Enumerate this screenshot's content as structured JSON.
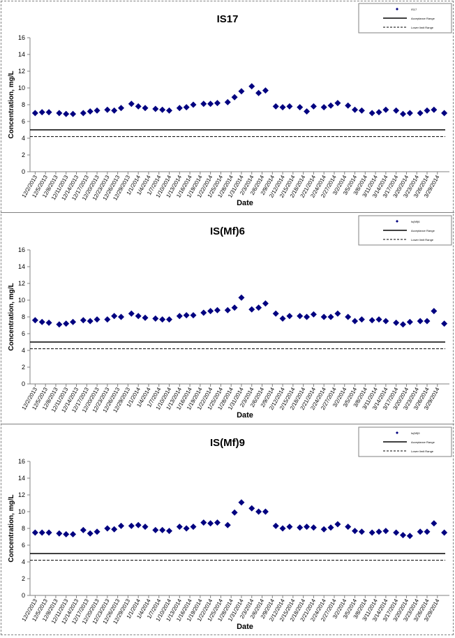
{
  "chart_data": [
    {
      "type": "scatter",
      "title": "IS17",
      "xlabel": "Date",
      "ylabel": "Concentration, mg/L",
      "ylim": [
        0,
        16
      ],
      "yticks": [
        0,
        2,
        4,
        6,
        8,
        10,
        12,
        14,
        16
      ],
      "grid": false,
      "legend_position": "top-right",
      "legend": [
        "IS17",
        "Acceptance Range",
        "Lower limit Range"
      ],
      "xtick_labels": [
        "12/2/2013",
        "12/5/2013",
        "12/8/2013",
        "12/11/2013",
        "12/14/2013",
        "12/17/2013",
        "12/20/2013",
        "12/23/2013",
        "12/26/2013",
        "12/29/2013",
        "1/1/2014",
        "1/4/2014",
        "1/7/2014",
        "1/10/2014",
        "1/13/2014",
        "1/16/2014",
        "1/19/2014",
        "1/22/2014",
        "1/25/2014",
        "1/28/2014",
        "1/31/2014",
        "2/3/2014",
        "2/6/2014",
        "2/9/2014",
        "2/12/2014",
        "2/15/2014",
        "2/18/2014",
        "2/21/2014",
        "2/24/2014",
        "2/27/2014",
        "3/2/2014",
        "3/5/2014",
        "3/8/2014",
        "3/11/2014",
        "3/14/2014",
        "3/17/2014",
        "3/20/2014",
        "3/23/2014",
        "3/26/2014",
        "3/29/2014"
      ],
      "series": [
        {
          "name": "IS17",
          "color": "#000080",
          "points": [
            {
              "x": "12/2/2013",
              "y": 7.0
            },
            {
              "x": "12/4/2013",
              "y": 7.1
            },
            {
              "x": "12/6/2013",
              "y": 7.1
            },
            {
              "x": "12/9/2013",
              "y": 7.0
            },
            {
              "x": "12/11/2013",
              "y": 6.9
            },
            {
              "x": "12/13/2013",
              "y": 6.9
            },
            {
              "x": "12/16/2013",
              "y": 7.0
            },
            {
              "x": "12/18/2013",
              "y": 7.2
            },
            {
              "x": "12/20/2013",
              "y": 7.3
            },
            {
              "x": "12/23/2013",
              "y": 7.4
            },
            {
              "x": "12/25/2013",
              "y": 7.3
            },
            {
              "x": "12/27/2013",
              "y": 7.6
            },
            {
              "x": "12/30/2013",
              "y": 8.1
            },
            {
              "x": "1/1/2014",
              "y": 7.8
            },
            {
              "x": "1/3/2014",
              "y": 7.6
            },
            {
              "x": "1/6/2014",
              "y": 7.5
            },
            {
              "x": "1/8/2014",
              "y": 7.4
            },
            {
              "x": "1/10/2014",
              "y": 7.3
            },
            {
              "x": "1/13/2014",
              "y": 7.6
            },
            {
              "x": "1/15/2014",
              "y": 7.7
            },
            {
              "x": "1/17/2014",
              "y": 8.0
            },
            {
              "x": "1/20/2014",
              "y": 8.1
            },
            {
              "x": "1/22/2014",
              "y": 8.1
            },
            {
              "x": "1/24/2014",
              "y": 8.2
            },
            {
              "x": "1/27/2014",
              "y": 8.3
            },
            {
              "x": "1/29/2014",
              "y": 8.9
            },
            {
              "x": "1/31/2014",
              "y": 9.6
            },
            {
              "x": "2/3/2014",
              "y": 10.2
            },
            {
              "x": "2/5/2014",
              "y": 9.4
            },
            {
              "x": "2/7/2014",
              "y": 9.7
            },
            {
              "x": "2/10/2014",
              "y": 7.8
            },
            {
              "x": "2/12/2014",
              "y": 7.7
            },
            {
              "x": "2/14/2014",
              "y": 7.8
            },
            {
              "x": "2/17/2014",
              "y": 7.7
            },
            {
              "x": "2/19/2014",
              "y": 7.2
            },
            {
              "x": "2/21/2014",
              "y": 7.8
            },
            {
              "x": "2/24/2014",
              "y": 7.7
            },
            {
              "x": "2/26/2014",
              "y": 7.9
            },
            {
              "x": "2/28/2014",
              "y": 8.2
            },
            {
              "x": "3/3/2014",
              "y": 7.9
            },
            {
              "x": "3/5/2014",
              "y": 7.4
            },
            {
              "x": "3/7/2014",
              "y": 7.3
            },
            {
              "x": "3/10/2014",
              "y": 7.0
            },
            {
              "x": "3/12/2014",
              "y": 7.1
            },
            {
              "x": "3/14/2014",
              "y": 7.4
            },
            {
              "x": "3/17/2014",
              "y": 7.3
            },
            {
              "x": "3/19/2014",
              "y": 6.9
            },
            {
              "x": "3/21/2014",
              "y": 7.0
            },
            {
              "x": "3/24/2014",
              "y": 7.0
            },
            {
              "x": "3/26/2014",
              "y": 7.3
            },
            {
              "x": "3/28/2014",
              "y": 7.4
            },
            {
              "x": "3/31/2014",
              "y": 7.0
            }
          ]
        }
      ],
      "reference_lines": [
        {
          "name": "Acceptance Range",
          "y": 5.0,
          "style": "solid"
        },
        {
          "name": "Lower limit Range",
          "y": 4.2,
          "style": "dashed"
        }
      ]
    },
    {
      "type": "scatter",
      "title": "IS(Mf)6",
      "xlabel": "Date",
      "ylabel": "Concentration, mg/L",
      "ylim": [
        0,
        16
      ],
      "yticks": [
        0,
        2,
        4,
        6,
        8,
        10,
        12,
        14,
        16
      ],
      "grid": false,
      "legend_position": "top-right",
      "legend": [
        "Is(Mf)6",
        "Acceptance Range",
        "Lower limit Range"
      ],
      "xtick_labels": [
        "12/2/2013",
        "12/5/2013",
        "12/8/2013",
        "12/11/2013",
        "12/14/2013",
        "12/17/2013",
        "12/20/2013",
        "12/23/2013",
        "12/26/2013",
        "12/29/2013",
        "1/1/2014",
        "1/4/2014",
        "1/7/2014",
        "1/10/2014",
        "1/13/2014",
        "1/16/2014",
        "1/19/2014",
        "1/22/2014",
        "1/25/2014",
        "1/28/2014",
        "1/31/2014",
        "2/3/2014",
        "2/6/2014",
        "2/9/2014",
        "2/12/2014",
        "2/15/2014",
        "2/18/2014",
        "2/21/2014",
        "2/24/2014",
        "2/27/2014",
        "3/2/2014",
        "3/5/2014",
        "3/8/2014",
        "3/11/2014",
        "3/14/2014",
        "3/17/2014",
        "3/20/2014",
        "3/23/2014",
        "3/26/2014",
        "3/29/2014"
      ],
      "series": [
        {
          "name": "Is(Mf)6",
          "color": "#000080",
          "points": [
            {
              "x": "12/2/2013",
              "y": 7.6
            },
            {
              "x": "12/4/2013",
              "y": 7.4
            },
            {
              "x": "12/6/2013",
              "y": 7.3
            },
            {
              "x": "12/9/2013",
              "y": 7.1
            },
            {
              "x": "12/11/2013",
              "y": 7.2
            },
            {
              "x": "12/13/2013",
              "y": 7.4
            },
            {
              "x": "12/16/2013",
              "y": 7.6
            },
            {
              "x": "12/18/2013",
              "y": 7.5
            },
            {
              "x": "12/20/2013",
              "y": 7.7
            },
            {
              "x": "12/23/2013",
              "y": 7.7
            },
            {
              "x": "12/25/2013",
              "y": 8.1
            },
            {
              "x": "12/27/2013",
              "y": 8.0
            },
            {
              "x": "12/30/2013",
              "y": 8.4
            },
            {
              "x": "1/1/2014",
              "y": 8.1
            },
            {
              "x": "1/3/2014",
              "y": 7.9
            },
            {
              "x": "1/6/2014",
              "y": 7.8
            },
            {
              "x": "1/8/2014",
              "y": 7.7
            },
            {
              "x": "1/10/2014",
              "y": 7.7
            },
            {
              "x": "1/13/2014",
              "y": 8.1
            },
            {
              "x": "1/15/2014",
              "y": 8.2
            },
            {
              "x": "1/17/2014",
              "y": 8.2
            },
            {
              "x": "1/20/2014",
              "y": 8.5
            },
            {
              "x": "1/22/2014",
              "y": 8.7
            },
            {
              "x": "1/24/2014",
              "y": 8.8
            },
            {
              "x": "1/27/2014",
              "y": 8.8
            },
            {
              "x": "1/29/2014",
              "y": 9.1
            },
            {
              "x": "1/31/2014",
              "y": 10.3
            },
            {
              "x": "2/3/2014",
              "y": 8.9
            },
            {
              "x": "2/5/2014",
              "y": 9.1
            },
            {
              "x": "2/7/2014",
              "y": 9.6
            },
            {
              "x": "2/10/2014",
              "y": 8.4
            },
            {
              "x": "2/12/2014",
              "y": 7.8
            },
            {
              "x": "2/14/2014",
              "y": 8.1
            },
            {
              "x": "2/17/2014",
              "y": 8.1
            },
            {
              "x": "2/19/2014",
              "y": 8.0
            },
            {
              "x": "2/21/2014",
              "y": 8.3
            },
            {
              "x": "2/24/2014",
              "y": 8.0
            },
            {
              "x": "2/26/2014",
              "y": 8.0
            },
            {
              "x": "2/28/2014",
              "y": 8.4
            },
            {
              "x": "3/3/2014",
              "y": 8.0
            },
            {
              "x": "3/5/2014",
              "y": 7.5
            },
            {
              "x": "3/7/2014",
              "y": 7.7
            },
            {
              "x": "3/10/2014",
              "y": 7.6
            },
            {
              "x": "3/12/2014",
              "y": 7.7
            },
            {
              "x": "3/14/2014",
              "y": 7.5
            },
            {
              "x": "3/17/2014",
              "y": 7.3
            },
            {
              "x": "3/19/2014",
              "y": 7.1
            },
            {
              "x": "3/21/2014",
              "y": 7.4
            },
            {
              "x": "3/24/2014",
              "y": 7.5
            },
            {
              "x": "3/26/2014",
              "y": 7.5
            },
            {
              "x": "3/28/2014",
              "y": 8.7
            },
            {
              "x": "3/31/2014",
              "y": 7.2
            }
          ]
        }
      ],
      "reference_lines": [
        {
          "name": "Acceptance Range",
          "y": 5.0,
          "style": "solid"
        },
        {
          "name": "Lower limit Range",
          "y": 4.2,
          "style": "dashed"
        }
      ]
    },
    {
      "type": "scatter",
      "title": "IS(Mf)9",
      "xlabel": "Date",
      "ylabel": "Concentration, mg/L",
      "ylim": [
        0,
        16
      ],
      "yticks": [
        0,
        2,
        4,
        6,
        8,
        10,
        12,
        14,
        16
      ],
      "grid": false,
      "legend_position": "top-right",
      "legend": [
        "Is(Mf)9",
        "Acceptance Range",
        "Lower limit Range"
      ],
      "xtick_labels": [
        "12/2/2013",
        "12/5/2013",
        "12/8/2013",
        "12/11/2013",
        "12/14/2013",
        "12/17/2013",
        "12/20/2013",
        "12/23/2013",
        "12/26/2013",
        "12/29/2013",
        "1/1/2014",
        "1/4/2014",
        "1/7/2014",
        "1/10/2014",
        "1/13/2014",
        "1/16/2014",
        "1/19/2014",
        "1/22/2014",
        "1/25/2014",
        "1/28/2014",
        "1/31/2014",
        "2/3/2014",
        "2/6/2014",
        "2/9/2014",
        "2/12/2014",
        "2/15/2014",
        "2/18/2014",
        "2/21/2014",
        "2/24/2014",
        "2/27/2014",
        "3/2/2014",
        "3/5/2014",
        "3/8/2014",
        "3/11/2014",
        "3/14/2014",
        "3/17/2014",
        "3/20/2014",
        "3/23/2014",
        "3/26/2014",
        "3/29/2014"
      ],
      "series": [
        {
          "name": "Is(Mf)9",
          "color": "#000080",
          "points": [
            {
              "x": "12/2/2013",
              "y": 7.5
            },
            {
              "x": "12/4/2013",
              "y": 7.5
            },
            {
              "x": "12/6/2013",
              "y": 7.5
            },
            {
              "x": "12/9/2013",
              "y": 7.4
            },
            {
              "x": "12/11/2013",
              "y": 7.3
            },
            {
              "x": "12/13/2013",
              "y": 7.3
            },
            {
              "x": "12/16/2013",
              "y": 7.8
            },
            {
              "x": "12/18/2013",
              "y": 7.4
            },
            {
              "x": "12/20/2013",
              "y": 7.6
            },
            {
              "x": "12/23/2013",
              "y": 8.0
            },
            {
              "x": "12/25/2013",
              "y": 7.9
            },
            {
              "x": "12/27/2013",
              "y": 8.3
            },
            {
              "x": "12/30/2013",
              "y": 8.3
            },
            {
              "x": "1/1/2014",
              "y": 8.4
            },
            {
              "x": "1/3/2014",
              "y": 8.2
            },
            {
              "x": "1/6/2014",
              "y": 7.8
            },
            {
              "x": "1/8/2014",
              "y": 7.8
            },
            {
              "x": "1/10/2014",
              "y": 7.7
            },
            {
              "x": "1/13/2014",
              "y": 8.2
            },
            {
              "x": "1/15/2014",
              "y": 8.0
            },
            {
              "x": "1/17/2014",
              "y": 8.2
            },
            {
              "x": "1/20/2014",
              "y": 8.7
            },
            {
              "x": "1/22/2014",
              "y": 8.6
            },
            {
              "x": "1/24/2014",
              "y": 8.7
            },
            {
              "x": "1/27/2014",
              "y": 8.4
            },
            {
              "x": "1/29/2014",
              "y": 9.9
            },
            {
              "x": "1/31/2014",
              "y": 11.1
            },
            {
              "x": "2/3/2014",
              "y": 10.4
            },
            {
              "x": "2/5/2014",
              "y": 10.0
            },
            {
              "x": "2/7/2014",
              "y": 10.0
            },
            {
              "x": "2/10/2014",
              "y": 8.3
            },
            {
              "x": "2/12/2014",
              "y": 8.0
            },
            {
              "x": "2/14/2014",
              "y": 8.2
            },
            {
              "x": "2/17/2014",
              "y": 8.1
            },
            {
              "x": "2/19/2014",
              "y": 8.2
            },
            {
              "x": "2/21/2014",
              "y": 8.1
            },
            {
              "x": "2/24/2014",
              "y": 7.9
            },
            {
              "x": "2/26/2014",
              "y": 8.1
            },
            {
              "x": "2/28/2014",
              "y": 8.5
            },
            {
              "x": "3/3/2014",
              "y": 8.2
            },
            {
              "x": "3/5/2014",
              "y": 7.7
            },
            {
              "x": "3/7/2014",
              "y": 7.6
            },
            {
              "x": "3/10/2014",
              "y": 7.5
            },
            {
              "x": "3/12/2014",
              "y": 7.6
            },
            {
              "x": "3/14/2014",
              "y": 7.7
            },
            {
              "x": "3/17/2014",
              "y": 7.5
            },
            {
              "x": "3/19/2014",
              "y": 7.2
            },
            {
              "x": "3/21/2014",
              "y": 7.1
            },
            {
              "x": "3/24/2014",
              "y": 7.6
            },
            {
              "x": "3/26/2014",
              "y": 7.6
            },
            {
              "x": "3/28/2014",
              "y": 8.6
            },
            {
              "x": "3/31/2014",
              "y": 7.5
            }
          ]
        }
      ],
      "reference_lines": [
        {
          "name": "Acceptance Range",
          "y": 5.0,
          "style": "solid"
        },
        {
          "name": "Lower limit Range",
          "y": 4.2,
          "style": "dashed"
        }
      ]
    }
  ],
  "colors": {
    "marker": "#000080",
    "axis": "#808080",
    "reference": "#000000"
  }
}
